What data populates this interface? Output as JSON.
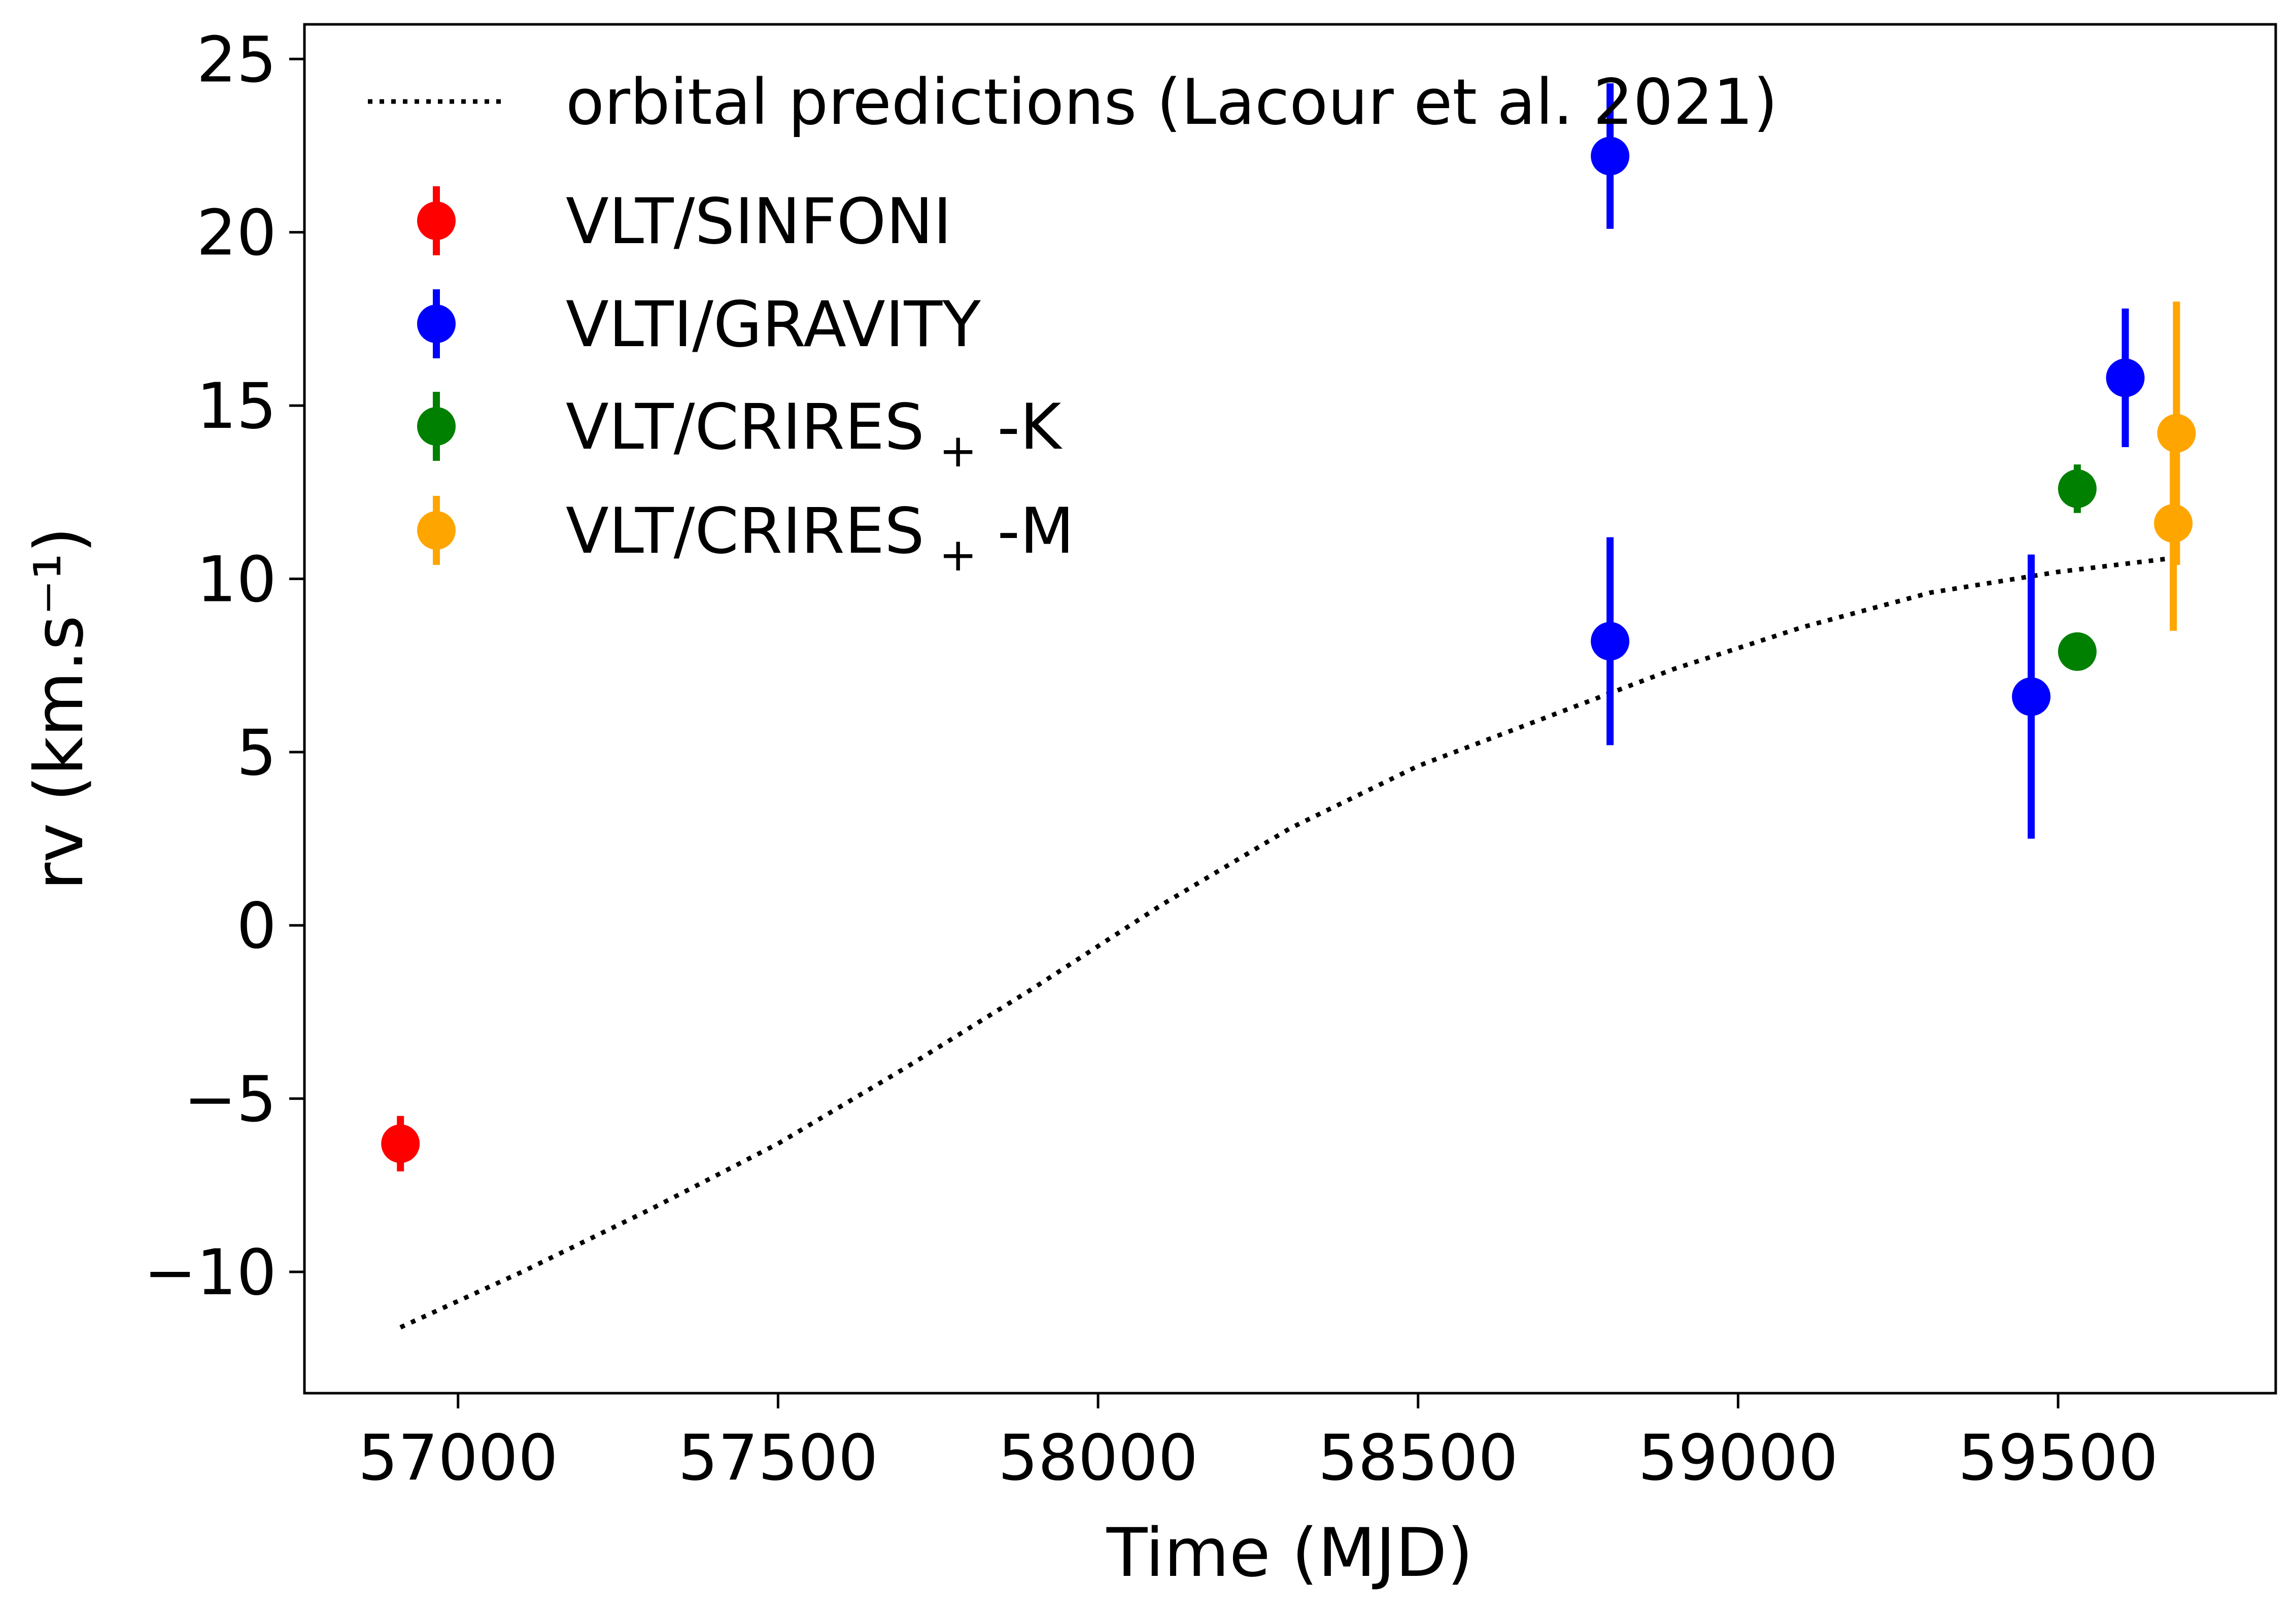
{
  "chart_data": {
    "type": "scatter",
    "xlabel": "Time (MJD)",
    "ylabel": "rv (km.s⁻¹)",
    "xlim": [
      56760,
      59840
    ],
    "ylim": [
      -13.5,
      26
    ],
    "xticks": [
      57000,
      57500,
      58000,
      58500,
      59000,
      59500
    ],
    "yticks": [
      -10,
      -5,
      0,
      5,
      10,
      15,
      20,
      25
    ],
    "xtick_labels": [
      "57000",
      "57500",
      "58000",
      "58500",
      "59000",
      "59500"
    ],
    "ytick_labels": [
      "−10",
      "−5",
      "0",
      "5",
      "10",
      "15",
      "20",
      "25"
    ],
    "grid": false,
    "legend_position": "top-left",
    "line_series": {
      "name": "orbital predictions (Lacour et al. 2021)",
      "style": "dotted",
      "color": "#000000",
      "x": [
        56910,
        57100,
        57300,
        57500,
        57700,
        57900,
        58100,
        58300,
        58500,
        58700,
        58900,
        59100,
        59300,
        59500,
        59680
      ],
      "y": [
        -11.6,
        -10.0,
        -8.2,
        -6.3,
        -4.1,
        -1.8,
        0.6,
        2.8,
        4.6,
        6.0,
        7.4,
        8.6,
        9.6,
        10.2,
        10.6
      ]
    },
    "series": [
      {
        "name": "VLT/SINFONI",
        "color": "#ff0000",
        "points": [
          {
            "x": 56910,
            "y": -6.3,
            "err": 0.8
          }
        ]
      },
      {
        "name": "VLTI/GRAVITY",
        "color": "#0000ff",
        "points": [
          {
            "x": 58800,
            "y": 22.2,
            "err": 2.1
          },
          {
            "x": 58800,
            "y": 8.2,
            "err": 3.0
          },
          {
            "x": 59458,
            "y": 6.6,
            "err": 4.1
          },
          {
            "x": 59605,
            "y": 15.8,
            "err": 2.0
          }
        ]
      },
      {
        "name": "VLT/CRIRES",
        "name_sub": "+",
        "name_suffix": "-K",
        "color": "#008000",
        "points": [
          {
            "x": 59530,
            "y": 12.6,
            "err": 0.7
          },
          {
            "x": 59530,
            "y": 7.9,
            "err": 0.2
          }
        ]
      },
      {
        "name": "VLT/CRIRES",
        "name_sub": "+",
        "name_suffix": "-M",
        "color": "#ffa500",
        "points": [
          {
            "x": 59685,
            "y": 14.2,
            "err": 3.8
          },
          {
            "x": 59680,
            "y": 11.6,
            "err": 3.1
          }
        ]
      }
    ]
  }
}
